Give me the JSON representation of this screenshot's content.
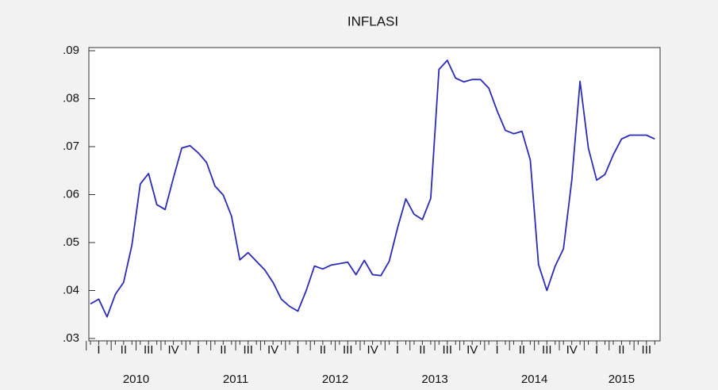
{
  "chart_data": {
    "type": "line",
    "title": "INFLASI",
    "values": [
      0.0372,
      0.0382,
      0.0345,
      0.0392,
      0.0417,
      0.0495,
      0.0622,
      0.0644,
      0.0579,
      0.0569,
      0.0635,
      0.0697,
      0.0702,
      0.0687,
      0.0667,
      0.0618,
      0.0599,
      0.0555,
      0.0464,
      0.0479,
      0.0461,
      0.0443,
      0.0417,
      0.0382,
      0.0367,
      0.0357,
      0.04,
      0.0451,
      0.0445,
      0.0453,
      0.0456,
      0.0459,
      0.0433,
      0.0463,
      0.0433,
      0.0431,
      0.0461,
      0.053,
      0.0591,
      0.0559,
      0.0548,
      0.0592,
      0.0861,
      0.088,
      0.0843,
      0.0835,
      0.084,
      0.084,
      0.0822,
      0.0775,
      0.0734,
      0.0727,
      0.0732,
      0.0672,
      0.0454,
      0.04,
      0.0451,
      0.0487,
      0.063,
      0.0836,
      0.0697,
      0.063,
      0.0642,
      0.0683,
      0.0716,
      0.0724,
      0.0724,
      0.0724,
      0.0716
    ],
    "color": "#2b2bb5",
    "quarter_labels": [
      "I",
      "II",
      "III",
      "IV",
      "I",
      "II",
      "III",
      "IV",
      "I",
      "II",
      "III",
      "IV",
      "I",
      "II",
      "III",
      "IV",
      "I",
      "II",
      "III",
      "IV",
      "I",
      "II",
      "III"
    ],
    "years": [
      "2010",
      "2011",
      "2012",
      "2013",
      "2014",
      "2015"
    ],
    "ylim": [
      0.03,
      0.09
    ],
    "yticks": [
      {
        "value": 0.03,
        "label": ".03"
      },
      {
        "value": 0.04,
        "label": ".04"
      },
      {
        "value": 0.05,
        "label": ".05"
      },
      {
        "value": 0.06,
        "label": ".06"
      },
      {
        "value": 0.07,
        "label": ".07"
      },
      {
        "value": 0.08,
        "label": ".08"
      },
      {
        "value": 0.09,
        "label": ".09"
      }
    ]
  }
}
